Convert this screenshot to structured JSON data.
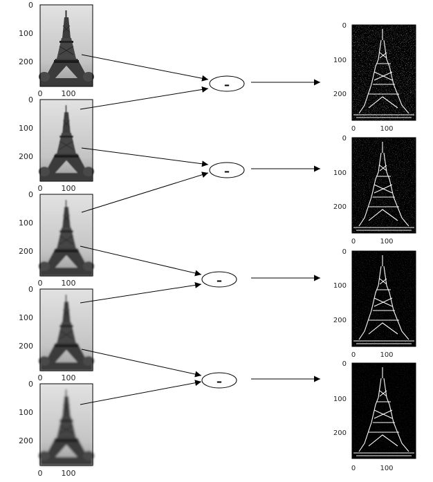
{
  "left_panels": [
    {
      "y_ticks": [
        "0",
        "100",
        "200"
      ],
      "x_ticks": [
        "0",
        "100"
      ]
    },
    {
      "y_ticks": [
        "0",
        "100",
        "200"
      ],
      "x_ticks": [
        "0",
        "100"
      ]
    },
    {
      "y_ticks": [
        "0",
        "100",
        "200"
      ],
      "x_ticks": [
        "0",
        "100"
      ]
    },
    {
      "y_ticks": [
        "0",
        "100",
        "200"
      ],
      "x_ticks": [
        "0",
        "100"
      ]
    },
    {
      "y_ticks": [
        "0",
        "100",
        "200"
      ],
      "x_ticks": [
        "0",
        "100"
      ]
    }
  ],
  "right_panels": [
    {
      "y_ticks": [
        "0",
        "100",
        "200"
      ],
      "x_ticks": [
        "0",
        "100"
      ]
    },
    {
      "y_ticks": [
        "0",
        "100",
        "200"
      ],
      "x_ticks": [
        "0",
        "100"
      ]
    },
    {
      "y_ticks": [
        "0",
        "100",
        "200"
      ],
      "x_ticks": [
        "0",
        "100"
      ]
    },
    {
      "y_ticks": [
        "0",
        "100",
        "200"
      ],
      "x_ticks": [
        "0",
        "100"
      ]
    }
  ],
  "operators": [
    {
      "symbol": "–"
    },
    {
      "symbol": "–"
    },
    {
      "symbol": "–"
    },
    {
      "symbol": "–"
    }
  ],
  "colors": {
    "arrow": "#000000",
    "left_bg": "#c9c9c9",
    "right_bg": "#000000",
    "tower_dark": "#2a2a2a",
    "edge_white": "#ffffff"
  }
}
